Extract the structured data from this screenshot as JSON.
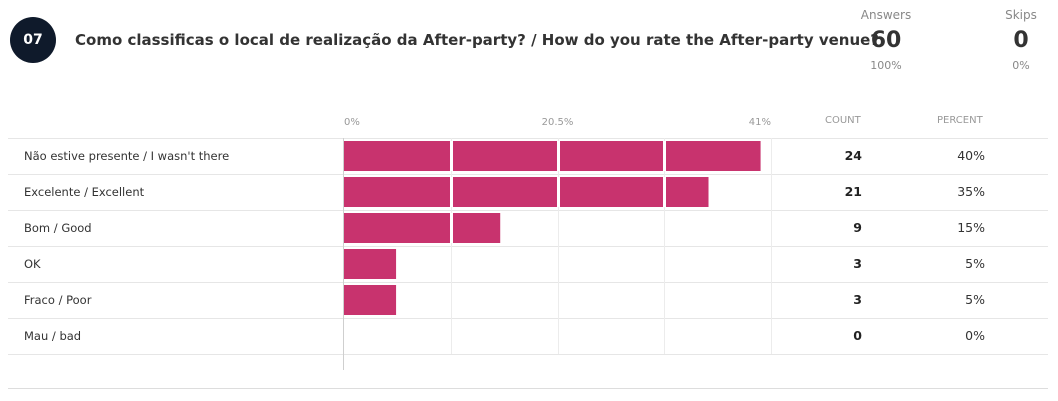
{
  "question": {
    "number": "07",
    "title": "Como classificas o local de realização da After-party? / How do you rate the After-party venue?"
  },
  "stats": {
    "answers": {
      "label": "Answers",
      "value": "60",
      "percent": "100%"
    },
    "skips": {
      "label": "Skips",
      "value": "0",
      "percent": "0%"
    }
  },
  "columns": {
    "count": "COUNT",
    "percent": "PERCENT"
  },
  "colors": {
    "bar": "#c8336e"
  },
  "chart_data": {
    "type": "bar",
    "orientation": "horizontal",
    "axis_ticks": [
      "0%",
      "20.5%",
      "41%"
    ],
    "xlim": [
      0,
      41
    ],
    "categories": [
      "Não estive presente / I wasn't there",
      "Excelente / Excellent",
      "Bom / Good",
      "OK",
      "Fraco / Poor",
      "Mau / bad"
    ],
    "counts": [
      24,
      21,
      9,
      3,
      3,
      0
    ],
    "percent_labels": [
      "40%",
      "35%",
      "15%",
      "5%",
      "5%",
      "0%"
    ],
    "values": [
      40,
      35,
      15,
      5,
      5,
      0
    ]
  }
}
